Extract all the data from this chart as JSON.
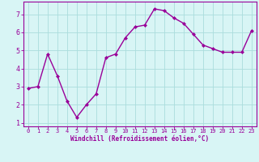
{
  "x": [
    0,
    1,
    2,
    3,
    4,
    5,
    6,
    7,
    8,
    9,
    10,
    11,
    12,
    13,
    14,
    15,
    16,
    17,
    18,
    19,
    20,
    21,
    22,
    23
  ],
  "y": [
    2.9,
    3.0,
    4.8,
    3.6,
    2.2,
    1.3,
    2.0,
    2.6,
    4.6,
    4.8,
    5.7,
    6.3,
    6.4,
    7.3,
    7.2,
    6.8,
    6.5,
    5.9,
    5.3,
    5.1,
    4.9,
    4.9,
    4.9,
    6.1
  ],
  "line_color": "#990099",
  "marker": "D",
  "marker_size": 2,
  "bg_color": "#d8f5f5",
  "grid_color": "#aadddd",
  "xlabel": "Windchill (Refroidissement éolien,°C)",
  "xlabel_color": "#990099",
  "tick_color": "#990099",
  "ylim": [
    0.8,
    7.7
  ],
  "yticks": [
    1,
    2,
    3,
    4,
    5,
    6,
    7
  ],
  "xlim": [
    -0.5,
    23.5
  ],
  "xticks": [
    0,
    1,
    2,
    3,
    4,
    5,
    6,
    7,
    8,
    9,
    10,
    11,
    12,
    13,
    14,
    15,
    16,
    17,
    18,
    19,
    20,
    21,
    22,
    23
  ],
  "line_width": 1.0,
  "spine_color": "#990099",
  "fig_bg": "#d8f5f5",
  "xtick_fontsize": 5.0,
  "ytick_fontsize": 6.0,
  "xlabel_fontsize": 5.5
}
